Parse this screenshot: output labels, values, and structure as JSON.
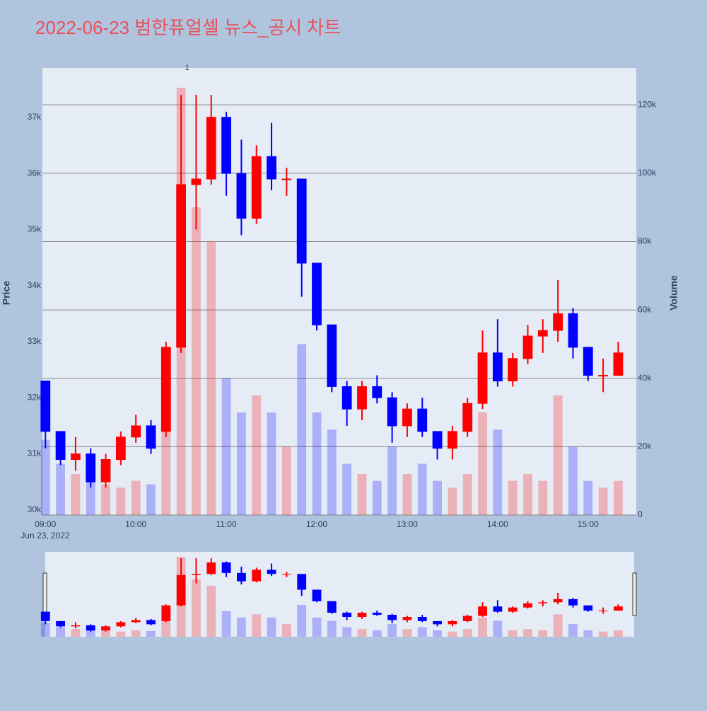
{
  "chart_data": {
    "type": "candlestick",
    "title": "2022-06-23 범한퓨얼셀 뉴스_공시 차트",
    "y_label": "Price",
    "y2_label": "Volume",
    "x_date_label": "Jun 23, 2022",
    "increasing_color": "#ff0000",
    "decreasing_color": "#0000ff",
    "x": [
      "2022-06-23 09:00",
      "2022-06-23 09:10",
      "2022-06-23 09:20",
      "2022-06-23 09:30",
      "2022-06-23 09:40",
      "2022-06-23 09:50",
      "2022-06-23 10:00",
      "2022-06-23 10:10",
      "2022-06-23 10:20",
      "2022-06-23 10:30",
      "2022-06-23 10:40",
      "2022-06-23 10:50",
      "2022-06-23 11:00",
      "2022-06-23 11:10",
      "2022-06-23 11:20",
      "2022-06-23 11:30",
      "2022-06-23 11:40",
      "2022-06-23 11:50",
      "2022-06-23 12:00",
      "2022-06-23 12:10",
      "2022-06-23 12:20",
      "2022-06-23 12:30",
      "2022-06-23 12:40",
      "2022-06-23 12:50",
      "2022-06-23 13:00",
      "2022-06-23 13:10",
      "2022-06-23 13:20",
      "2022-06-23 13:30",
      "2022-06-23 13:40",
      "2022-06-23 13:50",
      "2022-06-23 14:00",
      "2022-06-23 14:10",
      "2022-06-23 14:20",
      "2022-06-23 14:30",
      "2022-06-23 14:40",
      "2022-06-23 14:50",
      "2022-06-23 15:00",
      "2022-06-23 15:10",
      "2022-06-23 15:20"
    ],
    "open": [
      32300,
      31400,
      30900,
      31000,
      30500,
      30900,
      31300,
      31500,
      31400,
      32900,
      35800,
      35900,
      37000,
      36000,
      35200,
      36300,
      35900,
      35900,
      34400,
      33300,
      32200,
      31800,
      32200,
      32000,
      31500,
      31800,
      31400,
      31100,
      31400,
      31900,
      32800,
      32300,
      32700,
      33100,
      33200,
      33500,
      32900,
      32400,
      32400
    ],
    "high": [
      32300,
      31400,
      31300,
      31100,
      31000,
      31400,
      31700,
      31600,
      33000,
      37400,
      37400,
      37400,
      37100,
      36600,
      36500,
      36900,
      36100,
      35900,
      34400,
      33300,
      32300,
      32300,
      32400,
      32100,
      31900,
      32000,
      31400,
      31500,
      32000,
      33200,
      33400,
      32800,
      33300,
      33400,
      34100,
      33600,
      32900,
      32700,
      33000
    ],
    "low": [
      31100,
      30800,
      30700,
      30400,
      30400,
      30800,
      31200,
      31000,
      31300,
      32800,
      35000,
      35800,
      35600,
      34900,
      35100,
      35700,
      35600,
      33800,
      33200,
      32100,
      31500,
      31600,
      31900,
      31200,
      31300,
      31300,
      30900,
      30900,
      31300,
      31800,
      32200,
      32200,
      32600,
      32800,
      33000,
      32700,
      32300,
      32100,
      32400
    ],
    "close": [
      31400,
      30900,
      31000,
      30500,
      30900,
      31300,
      31500,
      31100,
      32900,
      35800,
      35900,
      37000,
      36000,
      35200,
      36300,
      35900,
      35900,
      34400,
      33300,
      32200,
      31800,
      32200,
      32000,
      31500,
      31800,
      31400,
      31100,
      31400,
      31900,
      32800,
      32300,
      32700,
      33100,
      33200,
      33500,
      32900,
      32400,
      32400,
      32800
    ],
    "volume": [
      22000,
      15000,
      12000,
      10000,
      9000,
      8000,
      10000,
      9000,
      40000,
      125000,
      90000,
      80000,
      40000,
      30000,
      35000,
      30000,
      20000,
      50000,
      30000,
      25000,
      15000,
      12000,
      10000,
      20000,
      12000,
      15000,
      10000,
      8000,
      12000,
      30000,
      25000,
      10000,
      12000,
      10000,
      35000,
      20000,
      10000,
      8000,
      10000
    ],
    "xlim": [
      "2022-06-23 08:58",
      "2022-06-23 15:32"
    ],
    "xticks": [
      {
        "value": "2022-06-23 09:00",
        "label": "09:00"
      },
      {
        "value": "2022-06-23 10:00",
        "label": "10:00"
      },
      {
        "value": "2022-06-23 11:00",
        "label": "11:00"
      },
      {
        "value": "2022-06-23 12:00",
        "label": "12:00"
      },
      {
        "value": "2022-06-23 13:00",
        "label": "13:00"
      },
      {
        "value": "2022-06-23 14:00",
        "label": "14:00"
      },
      {
        "value": "2022-06-23 15:00",
        "label": "15:00"
      }
    ],
    "ylim": [
      29910,
      37880
    ],
    "yticks": [
      {
        "value": 30000,
        "label": "30k"
      },
      {
        "value": 31000,
        "label": "31k"
      },
      {
        "value": 32000,
        "label": "32k"
      },
      {
        "value": 33000,
        "label": "33k"
      },
      {
        "value": 34000,
        "label": "34k"
      },
      {
        "value": 35000,
        "label": "35k"
      },
      {
        "value": 36000,
        "label": "36k"
      },
      {
        "value": 37000,
        "label": "37k"
      }
    ],
    "y2lim": [
      0,
      130800
    ],
    "y2ticks": [
      0,
      {
        "value": 20000,
        "label": "20k"
      },
      {
        "value": 40000,
        "label": "40k"
      },
      {
        "value": 60000,
        "label": "60k"
      },
      {
        "value": 80000,
        "label": "80k"
      },
      {
        "value": 100000,
        "label": "100k"
      },
      {
        "value": 120000,
        "label": "120k"
      }
    ],
    "annotations": [
      {
        "x": "2022-06-23 10:34",
        "text": "1"
      }
    ]
  }
}
